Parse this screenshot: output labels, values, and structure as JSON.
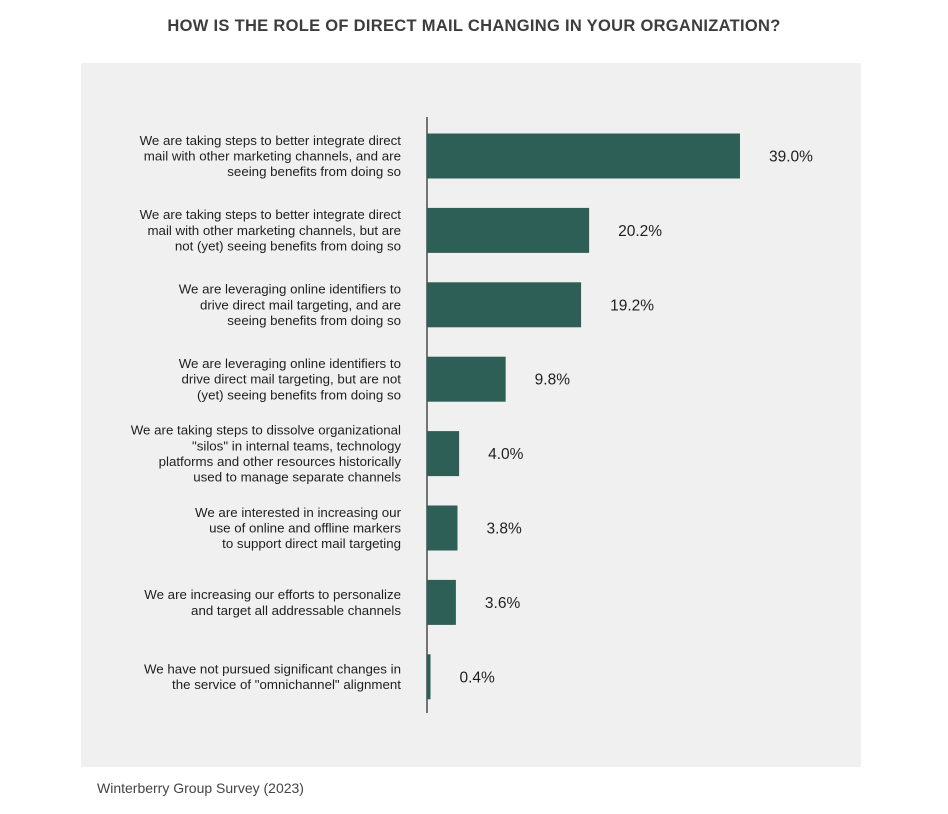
{
  "chart_data": {
    "type": "bar",
    "orientation": "horizontal",
    "title": "HOW IS THE ROLE OF DIRECT MAIL CHANGING IN YOUR ORGANIZATION?",
    "source": "Winterberry Group Survey (2023)",
    "bar_color": "#2e5f56",
    "background_color": "#f0f0f0",
    "xlim": [
      0,
      39
    ],
    "grid": false,
    "categories": [
      [
        "We are taking steps to better integrate direct",
        "mail with other marketing channels, and are",
        "seeing benefits from doing so"
      ],
      [
        "We are taking steps to better integrate direct",
        "mail with other marketing channels, but are",
        "not (yet) seeing benefits from doing so"
      ],
      [
        "We are leveraging online identifiers to",
        "drive direct mail targeting, and are",
        "seeing benefits from doing so"
      ],
      [
        "We are leveraging online identifiers to",
        "drive direct mail targeting, but are not",
        "(yet) seeing benefits from doing so"
      ],
      [
        "We are taking steps to dissolve organizational",
        "\"silos\" in internal teams, technology",
        "platforms and other resources historically",
        "used to manage separate channels"
      ],
      [
        "We are interested in increasing our",
        "use of online and offline markers",
        "to support direct mail targeting"
      ],
      [
        "We are increasing our efforts to personalize",
        "and target all addressable channels"
      ],
      [
        "We have not pursued significant changes in",
        "the service of \"omnichannel\" alignment"
      ]
    ],
    "values": [
      39.0,
      20.2,
      19.2,
      9.8,
      4.0,
      3.8,
      3.6,
      0.4
    ],
    "value_labels": [
      "39.0%",
      "20.2%",
      "19.2%",
      "9.8%",
      "4.0%",
      "3.8%",
      "3.6%",
      "0.4%"
    ]
  }
}
